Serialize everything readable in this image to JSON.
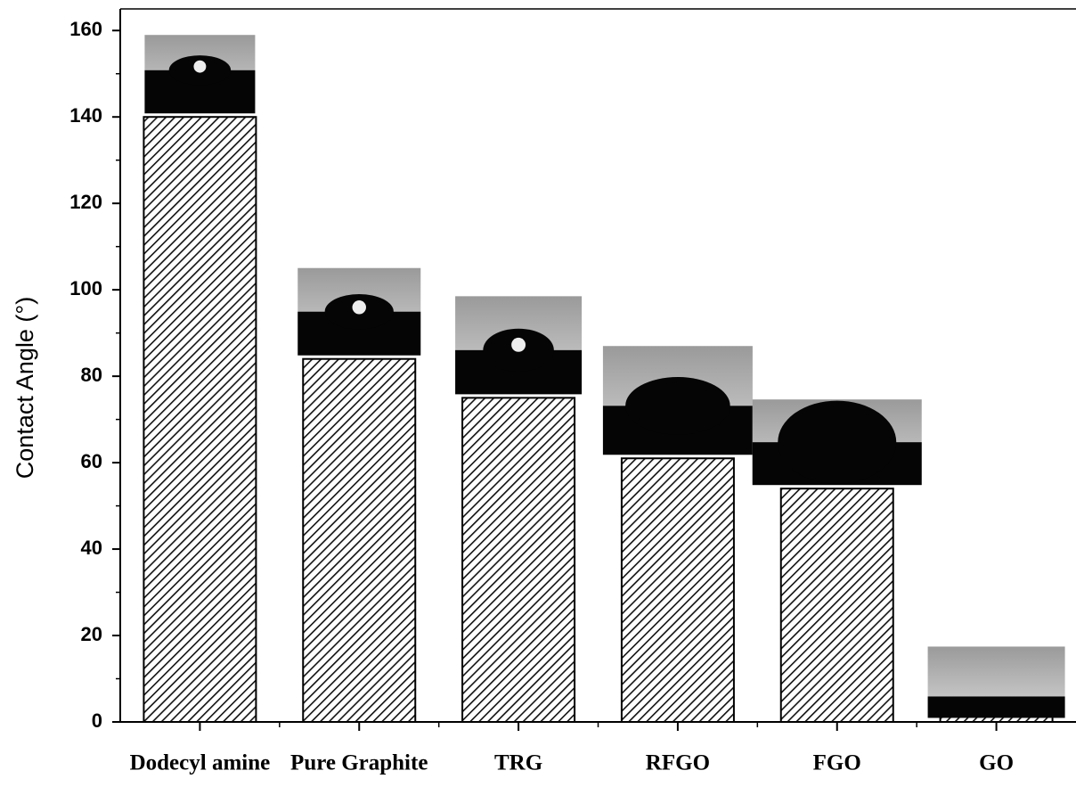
{
  "chart_data": {
    "type": "bar",
    "y_label": "Contact Angle (°)",
    "categories": [
      "Dodecyl amine",
      "Pure Graphite",
      "TRG",
      "RFGO",
      "FGO",
      "GO"
    ],
    "values": [
      140,
      84,
      75,
      61,
      54,
      3
    ],
    "color": "#111111",
    "ylim": [
      0,
      165
    ],
    "yticks": [
      0,
      20,
      40,
      60,
      80,
      100,
      120,
      140,
      160
    ]
  }
}
